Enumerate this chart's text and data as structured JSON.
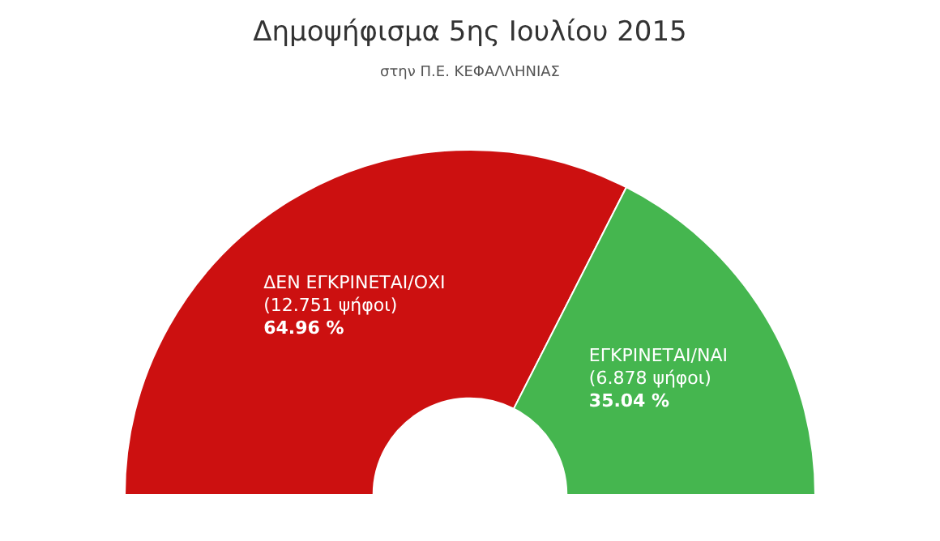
{
  "chart_data": {
    "type": "donut",
    "title": "Δημοψήφισμα 5ης Ιουλίου 2015",
    "subtitle": "στην Π.Ε. ΚΕΦΑΛΛΗΝΙΑΣ",
    "categories": [
      "ΔΕΝ ΕΓΚΡΙΝΕΤΑΙ/ΟΧΙ",
      "ΕΓΚΡΙΝΕΤΑΙ/ΝΑΙ"
    ],
    "values": [
      64.96,
      35.04
    ],
    "colors": [
      "#cc1010",
      "#45b64f"
    ],
    "value_labels": [
      "64.96 %",
      "35.04 %"
    ],
    "annotations": [
      "(12.751 ψήφοι)",
      "(6.878 ψήφοι)"
    ],
    "legend": false
  }
}
